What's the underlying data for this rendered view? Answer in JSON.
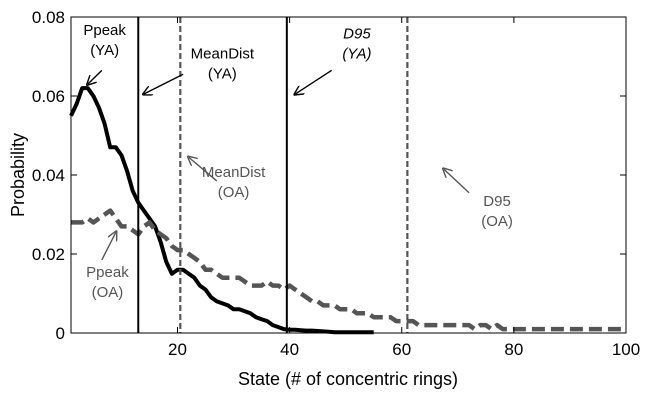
{
  "chart_data": {
    "type": "line",
    "xlabel": "State (# of concentric rings)",
    "ylabel": "Probability",
    "xlim": [
      1,
      100
    ],
    "ylim": [
      0,
      0.08
    ],
    "x_ticks": [
      20,
      40,
      60,
      80,
      100
    ],
    "y_ticks": [
      0,
      0.02,
      0.04,
      0.06,
      0.08
    ],
    "x_tick_labels": [
      "20",
      "40",
      "60",
      "80",
      "100"
    ],
    "y_tick_labels": [
      "0",
      "0.02",
      "0.04",
      "0.06",
      "0.08"
    ],
    "grid": false,
    "series": [
      {
        "color": "#000000",
        "style": "solid",
        "x": [
          1,
          2,
          3,
          4,
          5,
          6,
          7,
          8,
          9,
          10,
          11,
          12,
          13,
          14,
          15,
          16,
          17,
          18,
          19,
          20,
          21,
          22,
          23,
          24,
          25,
          26,
          27,
          28,
          29,
          30,
          31,
          32,
          33,
          34,
          35,
          36,
          37,
          38,
          39,
          40,
          41,
          42,
          43,
          44,
          45,
          46,
          47,
          48,
          49,
          50,
          51,
          52,
          53,
          54,
          55
        ],
        "y": [
          0.055,
          0.058,
          0.062,
          0.062,
          0.06,
          0.057,
          0.053,
          0.047,
          0.047,
          0.045,
          0.041,
          0.036,
          0.033,
          0.031,
          0.029,
          0.027,
          0.023,
          0.018,
          0.015,
          0.016,
          0.016,
          0.015,
          0.014,
          0.012,
          0.011,
          0.009,
          0.008,
          0.0075,
          0.007,
          0.006,
          0.006,
          0.0055,
          0.005,
          0.004,
          0.0035,
          0.003,
          0.002,
          0.0015,
          0.001,
          0.0008,
          0.0008,
          0.0007,
          0.0006,
          0.0006,
          0.0005,
          0.0004,
          0.0003,
          0.0002,
          0.0002,
          0.0002,
          0.0002,
          0.0002,
          0.0002,
          0.0002,
          0.0002
        ]
      },
      {
        "color": "#555555",
        "style": "dashed",
        "x": [
          1,
          2,
          3,
          4,
          5,
          6,
          7,
          8,
          9,
          10,
          11,
          12,
          13,
          14,
          15,
          16,
          17,
          18,
          19,
          20,
          21,
          22,
          23,
          24,
          25,
          26,
          27,
          28,
          29,
          30,
          31,
          32,
          33,
          34,
          35,
          36,
          37,
          38,
          39,
          40,
          41,
          42,
          43,
          44,
          45,
          46,
          47,
          48,
          49,
          50,
          51,
          52,
          53,
          54,
          55,
          56,
          57,
          58,
          59,
          60,
          61,
          62,
          63,
          64,
          65,
          66,
          67,
          68,
          69,
          70,
          71,
          72,
          73,
          74,
          75,
          76,
          77,
          78,
          79,
          80,
          81,
          82,
          83,
          84,
          85,
          86,
          87,
          88,
          89,
          90,
          91,
          92,
          93,
          94,
          95,
          96,
          97,
          98,
          99,
          100
        ],
        "y": [
          0.028,
          0.028,
          0.028,
          0.029,
          0.028,
          0.029,
          0.03,
          0.031,
          0.029,
          0.027,
          0.027,
          0.026,
          0.025,
          0.027,
          0.028,
          0.026,
          0.025,
          0.024,
          0.022,
          0.021,
          0.021,
          0.02,
          0.019,
          0.018,
          0.016,
          0.016,
          0.015,
          0.014,
          0.014,
          0.014,
          0.014,
          0.013,
          0.012,
          0.012,
          0.012,
          0.013,
          0.012,
          0.012,
          0.011,
          0.012,
          0.011,
          0.01,
          0.009,
          0.008,
          0.008,
          0.007,
          0.007,
          0.007,
          0.006,
          0.006,
          0.006,
          0.005,
          0.005,
          0.005,
          0.004,
          0.004,
          0.004,
          0.004,
          0.003,
          0.003,
          0.003,
          0.003,
          0.002,
          0.002,
          0.002,
          0.002,
          0.002,
          0.002,
          0.002,
          0.002,
          0.002,
          0.002,
          0.001,
          0.002,
          0.002,
          0.001,
          0.002,
          0.001,
          0.001,
          0.001,
          0.001,
          0.001,
          0.001,
          0.001,
          0.001,
          0.001,
          0.001,
          0.001,
          0.001,
          0.001,
          0.001,
          0.001,
          0.001,
          0.001,
          0.001,
          0.001,
          0.001,
          0.001,
          0.001,
          0.001
        ]
      }
    ],
    "vlines": [
      {
        "x": 13,
        "color": "#000000",
        "style": "solid"
      },
      {
        "x": 20.5,
        "color": "#555555",
        "style": "dashed"
      },
      {
        "x": 39.5,
        "color": "#000000",
        "style": "solid"
      },
      {
        "x": 61,
        "color": "#555555",
        "style": "dashed"
      }
    ],
    "annotations": [
      {
        "lines": [
          "Ppeak",
          "(YA)"
        ],
        "color": "#000000",
        "italic": false,
        "text_x": 7,
        "text_y": 0.0755,
        "arrow_from": [
          6.5,
          0.0665
        ],
        "arrow_to": [
          4,
          0.063
        ]
      },
      {
        "lines": [
          "MeanDist",
          "(YA)"
        ],
        "color": "#000000",
        "italic": false,
        "text_x": 28,
        "text_y": 0.0695,
        "arrow_from": [
          21,
          0.0655
        ],
        "arrow_to": [
          14,
          0.0605
        ]
      },
      {
        "lines": [
          "D95",
          "(YA)"
        ],
        "color": "#000000",
        "italic": true,
        "text_x": 52,
        "text_y": 0.0745,
        "arrow_from": [
          47.5,
          0.0665
        ],
        "arrow_to": [
          41,
          0.0605
        ]
      },
      {
        "lines": [
          "MeanDist",
          "(OA)"
        ],
        "color": "#555555",
        "italic": false,
        "text_x": 30,
        "text_y": 0.0395,
        "arrow_from": [
          27,
          0.0385
        ],
        "arrow_to": [
          22,
          0.0445
        ]
      },
      {
        "lines": [
          "D95",
          "(OA)"
        ],
        "color": "#555555",
        "italic": false,
        "text_x": 77,
        "text_y": 0.0322,
        "arrow_from": [
          72,
          0.0355
        ],
        "arrow_to": [
          67.5,
          0.0415
        ]
      },
      {
        "lines": [
          "Ppeak",
          "(OA)"
        ],
        "color": "#555555",
        "italic": false,
        "text_x": 7.5,
        "text_y": 0.0142,
        "arrow_from": [
          6.5,
          0.0185
        ],
        "arrow_to": [
          9,
          0.0255
        ]
      }
    ]
  }
}
